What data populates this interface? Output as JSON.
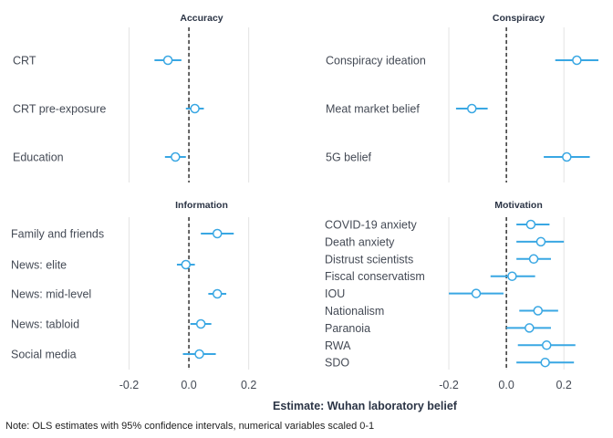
{
  "chart_data": {
    "type": "scatter",
    "subtype": "coefficient-plot",
    "xlabel": "Estimate: Wuhan laboratory belief",
    "note": "Note: OLS estimates with 95% confidence intervals, numerical variables scaled 0-1",
    "xticks": [
      "-0.2",
      "0.0",
      "0.2"
    ],
    "xlim": [
      -0.235,
      0.32
    ],
    "grid": true,
    "reference_line": 0,
    "colors": {
      "point": "#39a7e3",
      "reference": "#000000",
      "grid": "#e3e3e3"
    },
    "panels": [
      {
        "title": "Accuracy",
        "terms": [
          {
            "label": "CRT",
            "estimate": -0.07,
            "ci": [
              -0.115,
              -0.025
            ]
          },
          {
            "label": "CRT pre-exposure",
            "estimate": 0.02,
            "ci": [
              -0.01,
              0.05
            ]
          },
          {
            "label": "Education",
            "estimate": -0.045,
            "ci": [
              -0.08,
              -0.01
            ]
          }
        ]
      },
      {
        "title": "Conspiracy",
        "terms": [
          {
            "label": "Conspiracy ideation",
            "estimate": 0.245,
            "ci": [
              0.17,
              0.32
            ]
          },
          {
            "label": "Meat market belief",
            "estimate": -0.12,
            "ci": [
              -0.175,
              -0.065
            ]
          },
          {
            "label": "5G belief",
            "estimate": 0.21,
            "ci": [
              0.13,
              0.29
            ]
          }
        ]
      },
      {
        "title": "Information",
        "terms": [
          {
            "label": "Family and friends",
            "estimate": 0.095,
            "ci": [
              0.04,
              0.15
            ]
          },
          {
            "label": "News: elite",
            "estimate": -0.01,
            "ci": [
              -0.04,
              0.02
            ]
          },
          {
            "label": "News: mid-level",
            "estimate": 0.095,
            "ci": [
              0.065,
              0.125
            ]
          },
          {
            "label": "News: tabloid",
            "estimate": 0.04,
            "ci": [
              0.005,
              0.075
            ]
          },
          {
            "label": "Social media",
            "estimate": 0.035,
            "ci": [
              -0.02,
              0.09
            ]
          }
        ]
      },
      {
        "title": "Motivation",
        "terms": [
          {
            "label": "COVID-19 anxiety",
            "estimate": 0.085,
            "ci": [
              0.035,
              0.15
            ]
          },
          {
            "label": "Death anxiety",
            "estimate": 0.12,
            "ci": [
              0.035,
              0.2
            ]
          },
          {
            "label": "Distrust scientists",
            "estimate": 0.095,
            "ci": [
              0.035,
              0.155
            ]
          },
          {
            "label": "Fiscal conservatism",
            "estimate": 0.02,
            "ci": [
              -0.055,
              0.1
            ]
          },
          {
            "label": "IOU",
            "estimate": -0.105,
            "ci": [
              -0.2,
              -0.01
            ]
          },
          {
            "label": "Nationalism",
            "estimate": 0.11,
            "ci": [
              0.045,
              0.18
            ]
          },
          {
            "label": "Paranoia",
            "estimate": 0.08,
            "ci": [
              0.0,
              0.155
            ]
          },
          {
            "label": "RWA",
            "estimate": 0.14,
            "ci": [
              0.04,
              0.24
            ]
          },
          {
            "label": "SDO",
            "estimate": 0.135,
            "ci": [
              0.035,
              0.235
            ]
          }
        ]
      }
    ]
  }
}
